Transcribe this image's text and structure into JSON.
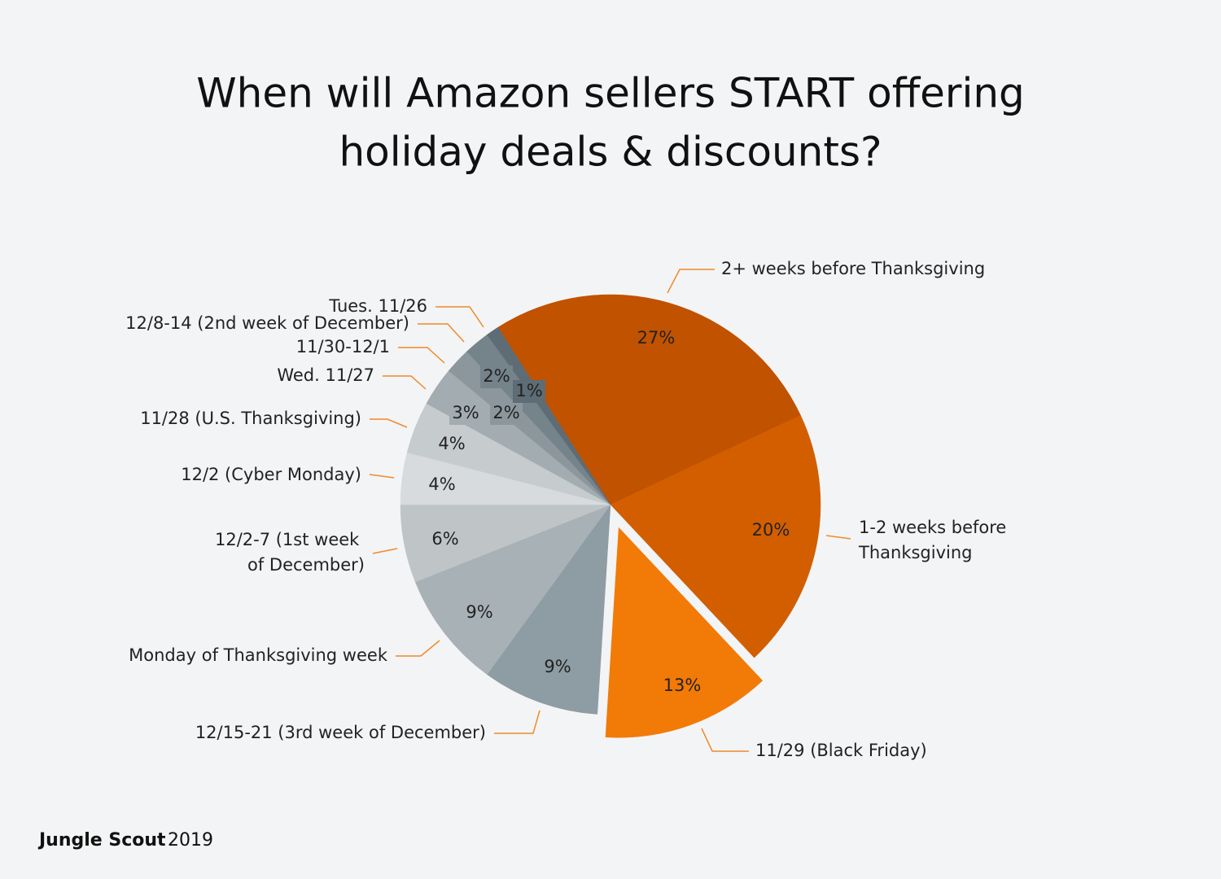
{
  "chart_data": {
    "type": "pie",
    "title": [
      "When will Amazon sellers START offering",
      "holiday deals & discounts?"
    ],
    "categories": [
      "2+ weeks before Thanksgiving",
      "1-2 weeks before Thanksgiving",
      "11/29 (Black Friday)",
      "12/15-21 (3rd week of December)",
      "Monday of Thanksgiving week",
      "12/2-7 (1st week of December)",
      "12/2 (Cyber Monday)",
      "11/28 (U.S. Thanksgiving)",
      "Wed. 11/27",
      "11/30-12/1",
      "12/8-14 (2nd week of December)",
      "Tues. 11/26"
    ],
    "values": [
      27,
      20,
      13,
      9,
      9,
      6,
      4,
      4,
      3,
      2,
      2,
      1
    ],
    "value_labels": [
      "27%",
      "20%",
      "13%",
      "9%",
      "9%",
      "6%",
      "4%",
      "4%",
      "3%",
      "2%",
      "2%",
      "1%"
    ],
    "colors": [
      "#c05200",
      "#d25e00",
      "#f27a06",
      "#8e9ca3",
      "#a8b1b5",
      "#bfc5c7",
      "#d7dbdd",
      "#c6cbcd",
      "#a2acb1",
      "#8c979d",
      "#75838b",
      "#5e6c75"
    ],
    "source_brand": "Jungle Scout",
    "source_year": "2019"
  }
}
